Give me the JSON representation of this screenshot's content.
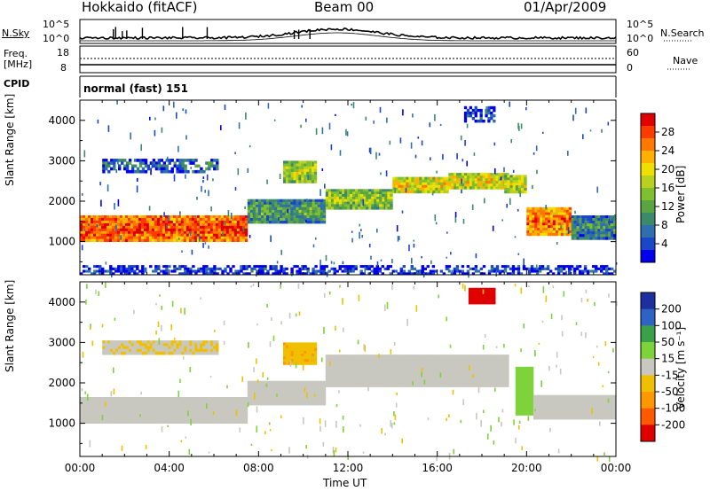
{
  "header": {
    "station": "Hokkaido (fitACF)",
    "beam": "Beam 00",
    "date": "01/Apr/2009"
  },
  "strip_panels": {
    "nsky_label": "N.Sky",
    "nsearch_label": "N.Search",
    "freq_label_1": "Freq.",
    "freq_label_2": "[MHz]",
    "nave_label": "Nave",
    "cpid_label": "CPID",
    "cpid_value": "normal (fast) 151",
    "noise_left_ticks": [
      "10^5",
      "10^0"
    ],
    "noise_right_ticks": [
      "10^5",
      "10^0"
    ],
    "freq_left_ticks": [
      "18",
      "8"
    ],
    "nave_right_ticks": [
      "60",
      "0"
    ]
  },
  "axes": {
    "xlabel": "Time UT",
    "x_ticks": [
      "00:00",
      "04:00",
      "08:00",
      "12:00",
      "16:00",
      "20:00",
      "00:00"
    ],
    "ylabel": "Slant Range [km]",
    "y_ticks": [
      "1000",
      "2000",
      "3000",
      "4000"
    ]
  },
  "colorbars": {
    "power": {
      "label": "Power [dB]",
      "ticks": [
        "4",
        "8",
        "12",
        "16",
        "20",
        "24",
        "28"
      ],
      "colors": [
        "#0000ee",
        "#1a46c8",
        "#2f6fb0",
        "#3c8a6a",
        "#5aa444",
        "#80c030",
        "#b8d020",
        "#f0e000",
        "#ffb000",
        "#ff7800",
        "#ff3c00",
        "#e00000"
      ]
    },
    "velocity": {
      "label": "Velocity [m s⁻¹]",
      "ticks": [
        "200",
        "100",
        "50",
        "15",
        "-15",
        "-50",
        "-100",
        "-200"
      ],
      "colors": [
        "#1c2fa0",
        "#2e62c4",
        "#3aa04a",
        "#7ed23a",
        "#c8c8c0",
        "#f0c000",
        "#ff9800",
        "#ff5a00",
        "#e00000"
      ]
    }
  },
  "chart_data": [
    {
      "type": "heatmap",
      "title": "Power",
      "xlabel": "Time UT",
      "ylabel": "Slant Range [km]",
      "xlim": [
        "00:00",
        "24:00"
      ],
      "ylim": [
        180,
        4500
      ],
      "colorbar_label": "Power [dB]",
      "colorbar_range": [
        0,
        30
      ],
      "regions": [
        {
          "t_start": 0.0,
          "t_end": 7.5,
          "r_min": 1000,
          "r_max": 1650,
          "power_db": 27
        },
        {
          "t_start": 7.5,
          "t_end": 11.0,
          "r_min": 1450,
          "r_max": 2050,
          "power_db": 12
        },
        {
          "t_start": 11.0,
          "t_end": 14.0,
          "r_min": 1800,
          "r_max": 2300,
          "power_db": 16
        },
        {
          "t_start": 14.0,
          "t_end": 16.5,
          "r_min": 2200,
          "r_max": 2600,
          "power_db": 20
        },
        {
          "t_start": 16.5,
          "t_end": 19.2,
          "r_min": 2300,
          "r_max": 2700,
          "power_db": 20
        },
        {
          "t_start": 19.0,
          "t_end": 20.0,
          "r_min": 2200,
          "r_max": 2650,
          "power_db": 18
        },
        {
          "t_start": 20.0,
          "t_end": 22.0,
          "r_min": 1150,
          "r_max": 1850,
          "power_db": 25
        },
        {
          "t_start": 22.0,
          "t_end": 24.0,
          "r_min": 1050,
          "r_max": 1650,
          "power_db": 10
        },
        {
          "t_start": 9.1,
          "t_end": 10.6,
          "r_min": 2450,
          "r_max": 3000,
          "power_db": 17
        },
        {
          "t_start": 1.0,
          "t_end": 6.2,
          "r_min": 2700,
          "r_max": 3050,
          "power_db": 8
        },
        {
          "t_start": 17.2,
          "t_end": 18.6,
          "r_min": 3950,
          "r_max": 4350,
          "power_db": 6
        },
        {
          "t_start": 0.0,
          "t_end": 24.0,
          "r_min": 180,
          "r_max": 420,
          "power_db": 5
        }
      ]
    },
    {
      "type": "heatmap",
      "title": "Velocity",
      "xlabel": "Time UT",
      "ylabel": "Slant Range [km]",
      "xlim": [
        "00:00",
        "24:00"
      ],
      "ylim": [
        180,
        4500
      ],
      "colorbar_label": "Velocity [m s⁻¹]",
      "colorbar_range": [
        -200,
        200
      ],
      "regions": [
        {
          "t_start": 0.0,
          "t_end": 7.5,
          "r_min": 1000,
          "r_max": 1650,
          "velocity": 0
        },
        {
          "t_start": 7.5,
          "t_end": 11.0,
          "r_min": 1450,
          "r_max": 2050,
          "velocity": 0
        },
        {
          "t_start": 11.0,
          "t_end": 19.2,
          "r_min": 1900,
          "r_max": 2700,
          "velocity": 0
        },
        {
          "t_start": 9.1,
          "t_end": 10.6,
          "r_min": 2450,
          "r_max": 3000,
          "velocity": -60
        },
        {
          "t_start": 19.5,
          "t_end": 20.3,
          "r_min": 1200,
          "r_max": 2400,
          "velocity": 40
        },
        {
          "t_start": 20.3,
          "t_end": 24.0,
          "r_min": 1100,
          "r_max": 1700,
          "velocity": 0
        },
        {
          "t_start": 17.4,
          "t_end": 18.6,
          "r_min": 3950,
          "r_max": 4350,
          "velocity": -200
        },
        {
          "t_start": 1.0,
          "t_end": 6.2,
          "r_min": 2700,
          "r_max": 3050,
          "velocity": -20
        }
      ]
    }
  ]
}
